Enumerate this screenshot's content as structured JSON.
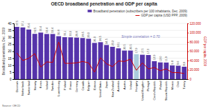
{
  "chart_data": {
    "type": "bar",
    "title": "OECD broadband penetration and GDP per capita",
    "ylabel": "Broadband penetration, Dec. 2009",
    "y2label": "GDP per capita, 2009",
    "annotation": "Simple correlation = 0.70",
    "source": "Source: OECD",
    "categories": [
      "Denmark",
      "Netherlands",
      "Switzerland",
      "Norway",
      "Korea",
      "Iceland",
      "Sweden",
      "Luxembourg",
      "Finland",
      "France",
      "Germany",
      "Canada",
      "Belgium",
      "Estonia",
      "United States",
      "Japan",
      "New Zealand",
      "Australia",
      "Austria",
      "Ireland",
      "Hungary",
      "United Kingdom",
      "Portugal",
      "Czech Republic",
      "Poland",
      "Slovak Republic",
      "Mexico",
      "Chile",
      "Turkey"
    ],
    "series": [
      {
        "name": "Broadband penetration (subscribers per 100 inhabitants, Dec. 2009)",
        "type": "bar",
        "color": "#5533AA",
        "colors": [
          "#5533AA",
          "#5533AA",
          "#5533AA",
          "#5533AA",
          "#5533AA",
          "#5533AA",
          "#5533AA",
          "#5533AA",
          "#5533AA",
          "#5533AA",
          "#5533AA",
          "#5533AA",
          "#5533AA",
          "#5533AA",
          "#5533AA",
          "#5533AA",
          "#5533AA",
          "#5533AA",
          "#5533AA",
          "#5533AA",
          "#AACCDD",
          "#5533AA",
          "#5533AA",
          "#5533AA",
          "#5533AA",
          "#5533AA",
          "#5533AA",
          "#5533AA",
          "#5533AA"
        ],
        "data_labels": true,
        "values": [
          37.5,
          37.1,
          35.6,
          32.5,
          33.4,
          32.4,
          32.4,
          30.8,
          30.1,
          30.0,
          29.8,
          29.5,
          29.0,
          26.0,
          26.5,
          24.5,
          23.2,
          22.1,
          20.5,
          20.5,
          17.9,
          17.5,
          17.3,
          12.9,
          12.0,
          11.9,
          9.8,
          9.6,
          8.9
        ],
        "value_labels": [
          "37.5",
          "37.1",
          "35.6",
          "32.5",
          "33.4",
          "32.4",
          "32.4",
          "30.8",
          "30.1",
          "30.0",
          "29.8",
          "29.5",
          "29.0",
          "26.0",
          "26.5",
          "24.5",
          "23.2",
          "22.1",
          "20.5",
          "20.5",
          "17.9",
          "17.5",
          "17.3",
          "12.9",
          "12.0",
          "11.9",
          "9.8",
          "9.6",
          "8.9"
        ]
      },
      {
        "name": "GDP per capita (USD PPP, 2009)",
        "type": "line",
        "color": "#CC0000",
        "axis": "y2",
        "values": [
          56000,
          40000,
          45000,
          55000,
          26000,
          37000,
          36000,
          80000,
          34000,
          34000,
          35000,
          38000,
          35000,
          15000,
          46000,
          33000,
          27000,
          39000,
          38000,
          43000,
          19000,
          35000,
          22000,
          25000,
          18000,
          22000,
          14000,
          14000,
          12000
        ]
      }
    ],
    "ylim": [
      0,
      40
    ],
    "yticks": [
      0,
      5,
      10,
      15,
      20,
      25,
      30,
      35,
      40
    ],
    "y2lim": [
      0,
      120000
    ],
    "y2ticks": [
      0,
      {
        "value": 20000,
        "label": "20.000"
      },
      {
        "value": 40000,
        "label": "40.000"
      },
      {
        "value": 60000,
        "label": "60.000"
      },
      {
        "value": 80000,
        "label": "80.000"
      },
      {
        "value": 100000,
        "label": "100.000"
      },
      {
        "value": 120000,
        "label": "120.000"
      }
    ],
    "grid": true,
    "legend": "upper right"
  }
}
